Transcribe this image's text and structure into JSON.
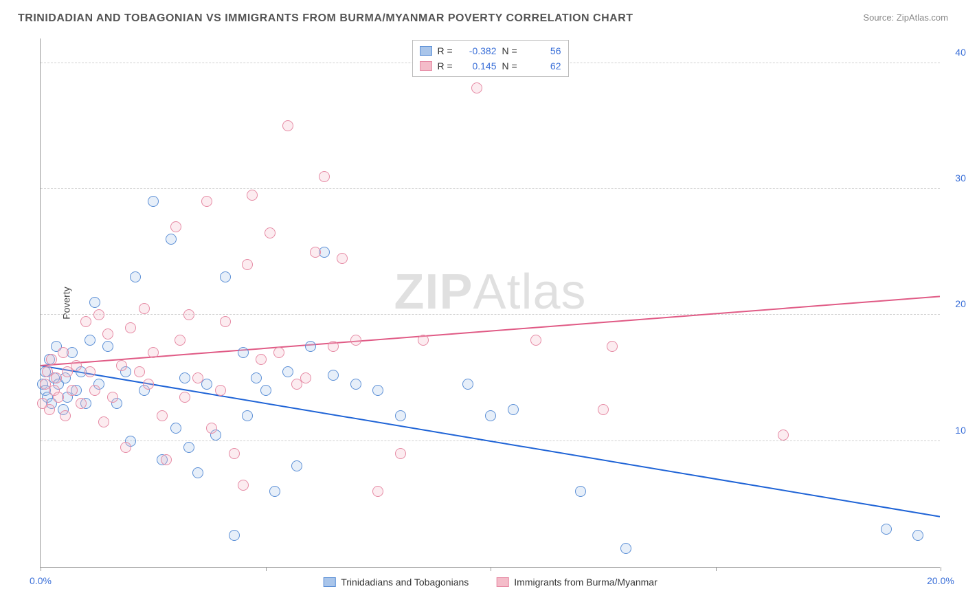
{
  "title": "TRINIDADIAN AND TOBAGONIAN VS IMMIGRANTS FROM BURMA/MYANMAR POVERTY CORRELATION CHART",
  "source_label": "Source:",
  "source_value": "ZipAtlas.com",
  "ylabel": "Poverty",
  "watermark_a": "ZIP",
  "watermark_b": "Atlas",
  "chart": {
    "type": "scatter",
    "xlim": [
      0,
      20
    ],
    "ylim": [
      0,
      42
    ],
    "x_ticks": [
      0,
      5,
      10,
      15,
      20
    ],
    "x_tick_labels": [
      "0.0%",
      "",
      "",
      "",
      "20.0%"
    ],
    "y_gridlines": [
      10,
      20,
      30,
      40
    ],
    "y_tick_labels": [
      "10.0%",
      "20.0%",
      "30.0%",
      "40.0%"
    ],
    "background_color": "#ffffff",
    "grid_color": "#d0d0d0",
    "axis_color": "#999999",
    "tick_label_color": "#3a6fd8",
    "marker_radius": 8,
    "marker_stroke_width": 1.2,
    "marker_fill_opacity": 0.28,
    "series": [
      {
        "id": "trinidad",
        "label": "Trinidadians and Tobagonians",
        "color_stroke": "#5b8fd6",
        "color_fill": "#a9c5ea",
        "R": "-0.382",
        "N": "56",
        "trend": {
          "x1": 0,
          "y1": 16.0,
          "x2": 20,
          "y2": 4.0,
          "stroke": "#1e63d6",
          "width": 2
        },
        "points": [
          [
            0.05,
            14.5
          ],
          [
            0.1,
            15.5
          ],
          [
            0.1,
            14.0
          ],
          [
            0.15,
            13.5
          ],
          [
            0.2,
            16.5
          ],
          [
            0.25,
            13.0
          ],
          [
            0.3,
            15.0
          ],
          [
            0.35,
            17.5
          ],
          [
            0.4,
            14.5
          ],
          [
            0.5,
            12.5
          ],
          [
            0.55,
            15.0
          ],
          [
            0.6,
            13.5
          ],
          [
            0.7,
            17.0
          ],
          [
            0.8,
            14.0
          ],
          [
            0.9,
            15.5
          ],
          [
            1.0,
            13.0
          ],
          [
            1.1,
            18.0
          ],
          [
            1.2,
            21.0
          ],
          [
            1.3,
            14.5
          ],
          [
            1.5,
            17.5
          ],
          [
            1.7,
            13.0
          ],
          [
            1.9,
            15.5
          ],
          [
            2.0,
            10.0
          ],
          [
            2.1,
            23.0
          ],
          [
            2.3,
            14.0
          ],
          [
            2.5,
            29.0
          ],
          [
            2.7,
            8.5
          ],
          [
            2.9,
            26.0
          ],
          [
            3.0,
            11.0
          ],
          [
            3.2,
            15.0
          ],
          [
            3.3,
            9.5
          ],
          [
            3.5,
            7.5
          ],
          [
            3.7,
            14.5
          ],
          [
            3.9,
            10.5
          ],
          [
            4.1,
            23.0
          ],
          [
            4.3,
            2.5
          ],
          [
            4.5,
            17.0
          ],
          [
            4.6,
            12.0
          ],
          [
            4.8,
            15.0
          ],
          [
            5.0,
            14.0
          ],
          [
            5.2,
            6.0
          ],
          [
            5.5,
            15.5
          ],
          [
            5.7,
            8.0
          ],
          [
            6.0,
            17.5
          ],
          [
            6.3,
            25.0
          ],
          [
            6.5,
            15.2
          ],
          [
            7.0,
            14.5
          ],
          [
            8.0,
            12.0
          ],
          [
            9.5,
            14.5
          ],
          [
            10.0,
            12.0
          ],
          [
            10.5,
            12.5
          ],
          [
            12.0,
            6.0
          ],
          [
            13.0,
            1.5
          ],
          [
            18.8,
            3.0
          ],
          [
            19.5,
            2.5
          ],
          [
            7.5,
            14.0
          ]
        ]
      },
      {
        "id": "burma",
        "label": "Immigrants from Burma/Myanmar",
        "color_stroke": "#e68aa4",
        "color_fill": "#f4bcc9",
        "R": "0.145",
        "N": "62",
        "trend": {
          "x1": 0,
          "y1": 16.0,
          "x2": 20,
          "y2": 21.5,
          "stroke": "#e05a85",
          "width": 2
        },
        "points": [
          [
            0.05,
            13.0
          ],
          [
            0.1,
            14.5
          ],
          [
            0.15,
            15.5
          ],
          [
            0.2,
            12.5
          ],
          [
            0.25,
            16.5
          ],
          [
            0.3,
            14.0
          ],
          [
            0.35,
            15.0
          ],
          [
            0.4,
            13.5
          ],
          [
            0.5,
            17.0
          ],
          [
            0.55,
            12.0
          ],
          [
            0.6,
            15.5
          ],
          [
            0.7,
            14.0
          ],
          [
            0.8,
            16.0
          ],
          [
            0.9,
            13.0
          ],
          [
            1.0,
            19.5
          ],
          [
            1.1,
            15.5
          ],
          [
            1.2,
            14.0
          ],
          [
            1.3,
            20.0
          ],
          [
            1.5,
            18.5
          ],
          [
            1.6,
            13.5
          ],
          [
            1.8,
            16.0
          ],
          [
            1.9,
            9.5
          ],
          [
            2.0,
            19.0
          ],
          [
            2.2,
            15.5
          ],
          [
            2.3,
            20.5
          ],
          [
            2.5,
            17.0
          ],
          [
            2.7,
            12.0
          ],
          [
            2.8,
            8.5
          ],
          [
            3.0,
            27.0
          ],
          [
            3.1,
            18.0
          ],
          [
            3.3,
            20.0
          ],
          [
            3.5,
            15.0
          ],
          [
            3.7,
            29.0
          ],
          [
            3.8,
            11.0
          ],
          [
            4.0,
            14.0
          ],
          [
            4.1,
            19.5
          ],
          [
            4.3,
            9.0
          ],
          [
            4.5,
            6.5
          ],
          [
            4.7,
            29.5
          ],
          [
            4.9,
            16.5
          ],
          [
            5.1,
            26.5
          ],
          [
            5.3,
            17.0
          ],
          [
            5.5,
            35.0
          ],
          [
            5.7,
            14.5
          ],
          [
            5.9,
            15.0
          ],
          [
            6.1,
            25.0
          ],
          [
            6.3,
            31.0
          ],
          [
            6.5,
            17.5
          ],
          [
            6.7,
            24.5
          ],
          [
            7.0,
            18.0
          ],
          [
            7.5,
            6.0
          ],
          [
            8.0,
            9.0
          ],
          [
            8.5,
            18.0
          ],
          [
            9.7,
            38.0
          ],
          [
            11.0,
            18.0
          ],
          [
            12.5,
            12.5
          ],
          [
            12.7,
            17.5
          ],
          [
            16.5,
            10.5
          ],
          [
            2.4,
            14.5
          ],
          [
            3.2,
            13.5
          ],
          [
            4.6,
            24.0
          ],
          [
            1.4,
            11.5
          ]
        ]
      }
    ]
  },
  "legend_top": {
    "R_label": "R =",
    "N_label": "N ="
  }
}
